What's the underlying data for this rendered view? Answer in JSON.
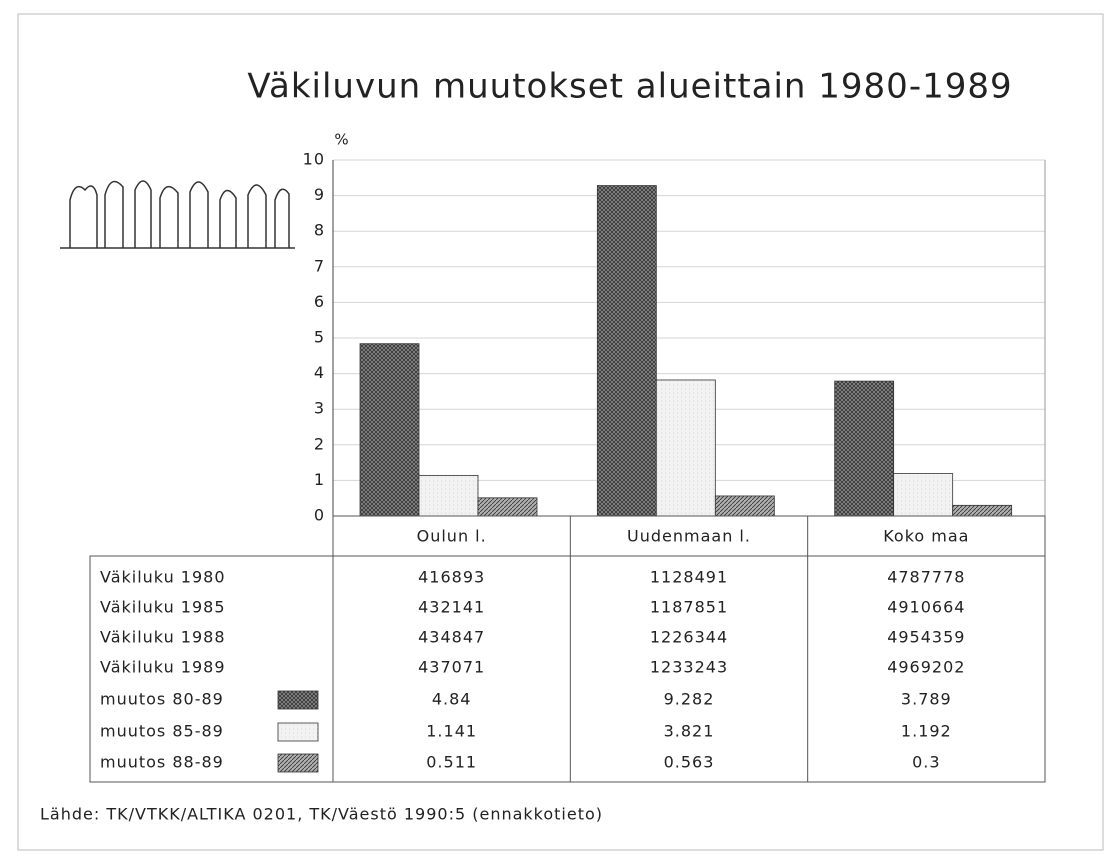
{
  "chart_data": {
    "type": "bar",
    "title": "Väkiluvun muutokset alueittain 1980-1989",
    "y_label": "%",
    "categories": [
      "Oulun l.",
      "Uudenmaan l.",
      "Koko maa"
    ],
    "series": [
      {
        "name": "muutos 80-89",
        "color": "#8a8a8a",
        "values": [
          4.84,
          9.282,
          3.789
        ]
      },
      {
        "name": "muutos 85-89",
        "color": "#f2f2f2",
        "values": [
          1.141,
          3.821,
          1.192
        ]
      },
      {
        "name": "muutos 88-89",
        "color": "#b0b0b0",
        "values": [
          0.511,
          0.563,
          0.3
        ]
      }
    ],
    "ylim": [
      0,
      10
    ],
    "yticks": [
      0,
      1,
      2,
      3,
      4,
      5,
      6,
      7,
      8,
      9,
      10
    ],
    "grid": true,
    "table": {
      "rows": [
        {
          "label": "Väkiluku 1980",
          "values": [
            416893,
            1128491,
            4787778
          ]
        },
        {
          "label": "Väkiluku 1985",
          "values": [
            432141,
            1187851,
            4910664
          ]
        },
        {
          "label": "Väkiluku 1988",
          "values": [
            434847,
            1226344,
            4954359
          ]
        },
        {
          "label": "Väkiluku 1989",
          "values": [
            437071,
            1233243,
            4969202
          ]
        }
      ]
    },
    "source": "Lähde: TK/VTKK/ALTIKA 0201, TK/Väestö 1990:5 (ennakkotieto)"
  }
}
